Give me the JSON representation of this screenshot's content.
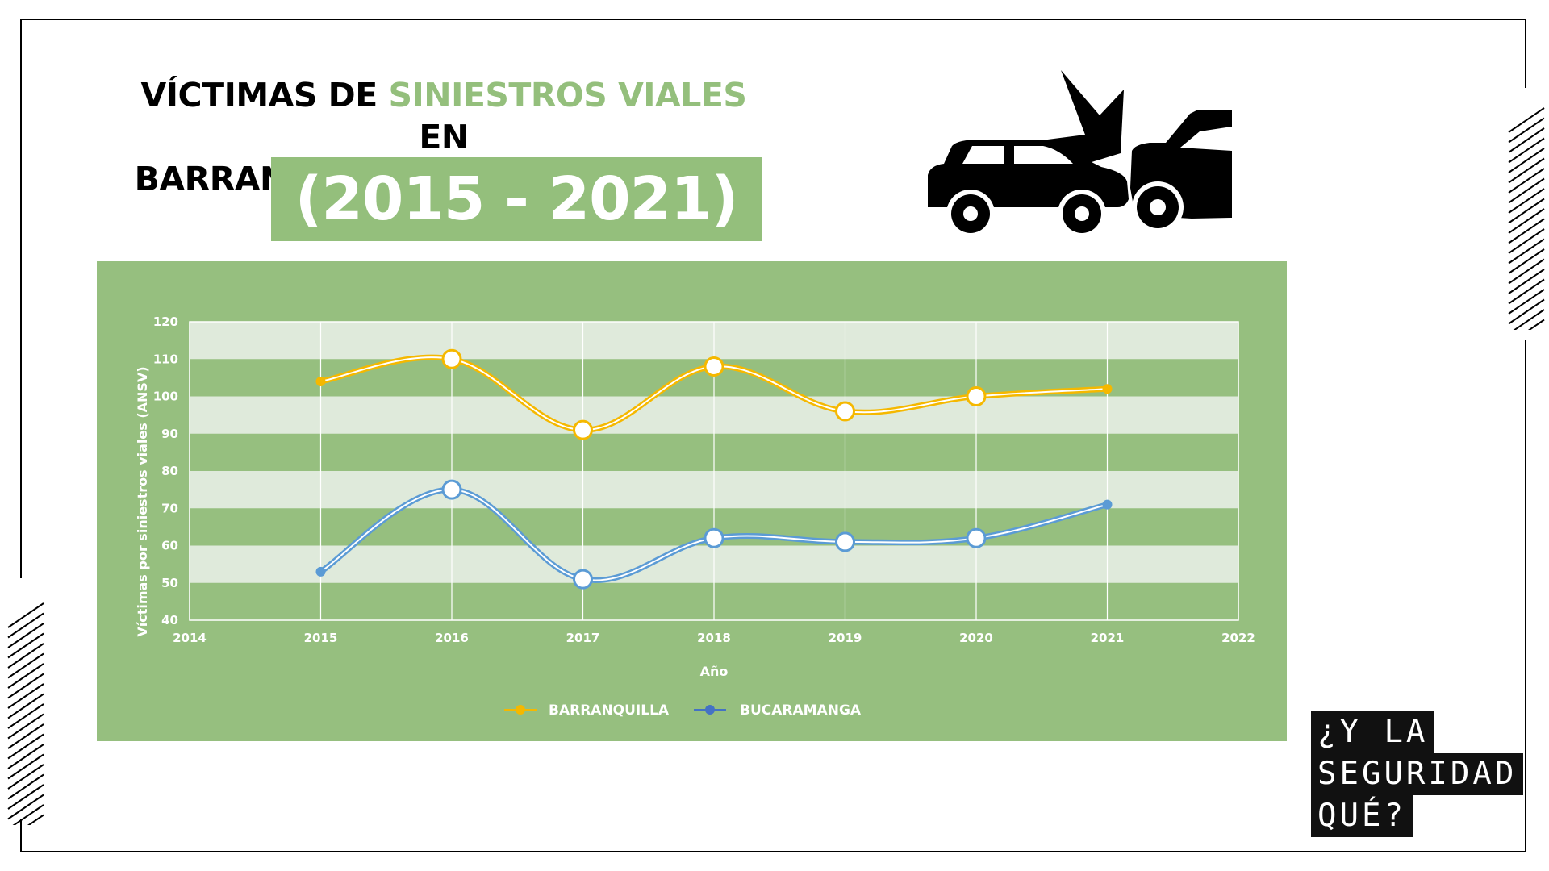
{
  "title": {
    "line1_prefix": "VÍCTIMAS DE ",
    "line1_accent": "SINIESTROS VIALES",
    "line1_suffix": " EN",
    "line2": "BARRANQUILLA Y BUCARAMANGA",
    "years": "(2015 - 2021)"
  },
  "colors": {
    "accent": "#94bf7c",
    "panel": "#96bf7f",
    "barranquilla": "#f5b800",
    "bucaramanga": "#5b9bd5"
  },
  "icons": {
    "car_crash": "car-crash-icon"
  },
  "brand": {
    "line1": "¿Y LA",
    "line2": "SEGURIDAD",
    "line3": "QUÉ?"
  },
  "chart_data": {
    "type": "line",
    "title": "",
    "xlabel": "Año",
    "ylabel": "Víctimas por siniestros viales (ANSV)",
    "xlim": [
      2014,
      2022
    ],
    "ylim": [
      40,
      120
    ],
    "x_ticks": [
      2014,
      2015,
      2016,
      2017,
      2018,
      2019,
      2020,
      2021,
      2022
    ],
    "y_ticks": [
      40,
      50,
      60,
      70,
      80,
      90,
      100,
      110,
      120
    ],
    "x": [
      2015,
      2016,
      2017,
      2018,
      2019,
      2020,
      2021
    ],
    "series": [
      {
        "name": "BARRANQUILLA",
        "values": [
          104,
          110,
          91,
          108,
          96,
          100,
          102
        ],
        "color": "#f5b800"
      },
      {
        "name": "BUCARAMANGA",
        "values": [
          53,
          75,
          51,
          62,
          61,
          62,
          71
        ],
        "color": "#5b9bd5"
      }
    ],
    "legend": "bottom-center",
    "grid": true
  }
}
